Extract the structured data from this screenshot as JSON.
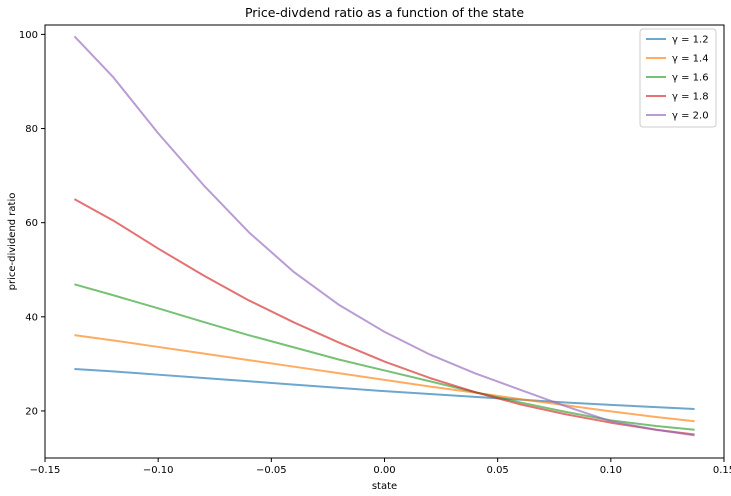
{
  "chart_data": {
    "type": "line",
    "title": "Price-divdend ratio as a function of the state",
    "xlabel": "state",
    "ylabel": "price-dividend ratio",
    "xlim": [
      -0.15,
      0.15
    ],
    "ylim": [
      10,
      102
    ],
    "xticks": [
      -0.15,
      -0.1,
      -0.05,
      0.0,
      0.05,
      0.1,
      0.15
    ],
    "xtick_labels": [
      "−0.15",
      "−0.10",
      "−0.05",
      "0.00",
      "0.05",
      "0.10",
      "0.15"
    ],
    "yticks": [
      20,
      40,
      60,
      80,
      100
    ],
    "ytick_labels": [
      "20",
      "40",
      "60",
      "80",
      "100"
    ],
    "grid": false,
    "legend_position": "top-right",
    "series": [
      {
        "name": "γ = 1.2",
        "color": "#1f77b4",
        "x": [
          -0.137,
          -0.12,
          -0.1,
          -0.08,
          -0.06,
          -0.04,
          -0.02,
          0.0,
          0.02,
          0.04,
          0.06,
          0.08,
          0.1,
          0.12,
          0.137
        ],
        "y": [
          28.9,
          28.4,
          27.7,
          27.0,
          26.3,
          25.6,
          24.9,
          24.2,
          23.6,
          23.0,
          22.4,
          21.8,
          21.3,
          20.8,
          20.4
        ]
      },
      {
        "name": "γ = 1.4",
        "color": "#ff7f0e",
        "x": [
          -0.137,
          -0.12,
          -0.1,
          -0.08,
          -0.06,
          -0.04,
          -0.02,
          0.0,
          0.02,
          0.04,
          0.06,
          0.08,
          0.1,
          0.12,
          0.137
        ],
        "y": [
          36.1,
          35.0,
          33.6,
          32.2,
          30.8,
          29.4,
          28.0,
          26.6,
          25.2,
          23.9,
          22.5,
          21.2,
          19.9,
          18.7,
          17.8
        ]
      },
      {
        "name": "γ = 1.6",
        "color": "#2ca02c",
        "x": [
          -0.137,
          -0.12,
          -0.1,
          -0.08,
          -0.06,
          -0.04,
          -0.02,
          0.0,
          0.02,
          0.04,
          0.06,
          0.08,
          0.1,
          0.12,
          0.137
        ],
        "y": [
          46.9,
          44.6,
          41.8,
          38.9,
          36.1,
          33.5,
          30.9,
          28.6,
          26.3,
          24.0,
          21.8,
          19.8,
          18.0,
          16.8,
          16.0
        ]
      },
      {
        "name": "γ = 1.8",
        "color": "#d62728",
        "x": [
          -0.137,
          -0.12,
          -0.1,
          -0.08,
          -0.06,
          -0.04,
          -0.02,
          0.0,
          0.02,
          0.04,
          0.06,
          0.08,
          0.1,
          0.12,
          0.137
        ],
        "y": [
          65.0,
          60.5,
          54.5,
          48.8,
          43.5,
          38.8,
          34.5,
          30.5,
          27.0,
          24.0,
          21.4,
          19.3,
          17.5,
          16.0,
          15.0
        ]
      },
      {
        "name": "γ = 2.0",
        "color": "#9467bd",
        "x": [
          -0.137,
          -0.12,
          -0.1,
          -0.08,
          -0.06,
          -0.04,
          -0.02,
          0.0,
          0.02,
          0.04,
          0.06,
          0.08,
          0.1,
          0.12,
          0.137
        ],
        "y": [
          99.6,
          91.0,
          79.0,
          68.0,
          58.0,
          49.5,
          42.5,
          36.8,
          32.0,
          28.0,
          24.5,
          21.0,
          17.8,
          16.0,
          14.8
        ]
      }
    ]
  }
}
